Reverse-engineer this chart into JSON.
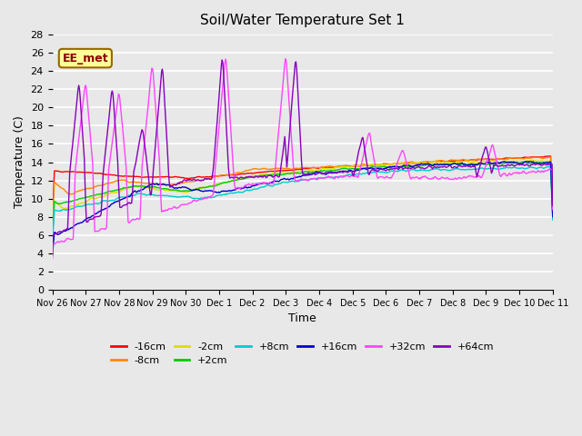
{
  "title": "Soil/Water Temperature Set 1",
  "xlabel": "Time",
  "ylabel": "Temperature (C)",
  "ylim": [
    0,
    28
  ],
  "yticks": [
    0,
    2,
    4,
    6,
    8,
    10,
    12,
    14,
    16,
    18,
    20,
    22,
    24,
    26,
    28
  ],
  "xtick_labels": [
    "Nov 26",
    "Nov 27",
    "Nov 28",
    "Nov 29",
    "Nov 30",
    "Dec 1",
    "Dec 2",
    "Dec 3",
    "Dec 4",
    "Dec 5",
    "Dec 6",
    "Dec 7",
    "Dec 8",
    "Dec 9",
    "Dec 10",
    "Dec 11"
  ],
  "background_color": "#e8e8e8",
  "plot_bg_color": "#e8e8e8",
  "grid_color": "#ffffff",
  "series": [
    {
      "label": "-16cm",
      "color": "#ff0000"
    },
    {
      "label": "-8cm",
      "color": "#ff8800"
    },
    {
      "label": "-2cm",
      "color": "#dddd00"
    },
    {
      "label": "+2cm",
      "color": "#00cc00"
    },
    {
      "label": "+8cm",
      "color": "#00cccc"
    },
    {
      "label": "+16cm",
      "color": "#0000cc"
    },
    {
      "label": "+32cm",
      "color": "#ff44ff"
    },
    {
      "label": "+64cm",
      "color": "#8800bb"
    }
  ],
  "annotation_text": "EE_met",
  "lw": 1.0
}
